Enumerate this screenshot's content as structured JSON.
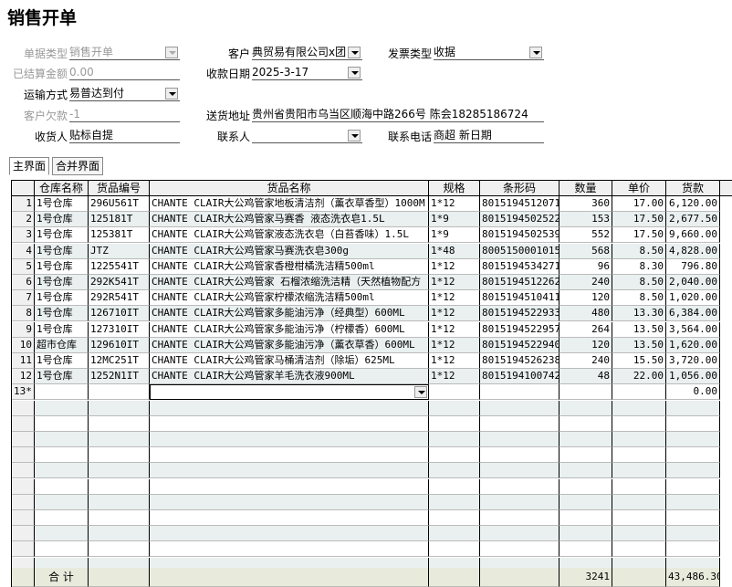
{
  "header": {
    "title": "销售开单"
  },
  "form": {
    "fields": [
      {
        "label": "单据类型",
        "value": "销售开单",
        "dropdown": true,
        "disabled": true
      },
      {
        "label": "客户",
        "value": "典贸易有限公司x团",
        "dropdown": true
      },
      {
        "label": "发票类型",
        "value": "收据",
        "dropdown": true
      },
      {
        "label": "已结算金额",
        "value": "0.00",
        "disabled": true
      },
      {
        "label": "收款日期",
        "value": "2025-3-17",
        "dropdown": true
      },
      {
        "label": "运输方式",
        "value": "易普达到付",
        "dropdown": true
      },
      {
        "label": "客户欠款",
        "value": "-1",
        "disabled": true
      },
      {
        "label": "送货地址",
        "value": "贵州省贵阳市乌当区顺海中路266号 陈会18285186724"
      },
      {
        "label": "收货人",
        "value": "贴标自提"
      },
      {
        "label": "联系人",
        "dropdown": true
      },
      {
        "label": "联系电话",
        "value": "商超 新日期"
      }
    ]
  },
  "tabs": [
    "主界面",
    "合并界面"
  ],
  "table": {
    "columns": [
      "仓库名称",
      "货品编号",
      "货品名称",
      "规格",
      "条形码",
      "数量",
      "单价",
      "货款"
    ],
    "rows": [
      {
        "no": "1",
        "cells": [
          "1号仓库",
          "296U561T",
          "CHANTE CLAIR大公鸡管家地板清洁剂（薰衣草香型）1000M",
          "1*12",
          "8015194512071",
          "360",
          "17.00",
          "6,120.00"
        ]
      },
      {
        "no": "2",
        "cells": [
          "1号仓库",
          "125181T",
          "CHANTE CLAIR大公鸡管家马赛香 液态洗衣皂1.5L",
          "1*9",
          "8015194502522",
          "153",
          "17.50",
          "2,677.50"
        ]
      },
      {
        "no": "3",
        "cells": [
          "1号仓库",
          "125381T",
          "CHANTE CLAIR大公鸡管家液态洗衣皂（白苔香味）1.5L",
          "1*9",
          "8015194502539",
          "552",
          "17.50",
          "9,660.00"
        ]
      },
      {
        "no": "4",
        "cells": [
          "1号仓库",
          "JTZ",
          "CHANTE CLAIR大公鸡管家马赛洗衣皂300g",
          "1*48",
          "8005150001015",
          "568",
          "8.50",
          "4,828.00"
        ]
      },
      {
        "no": "5",
        "cells": [
          "1号仓库",
          "1225541T",
          "CHANTE CLAIR大公鸡管家香橙柑橘洗洁精500ml",
          "1*12",
          "8015194534271",
          "96",
          "8.30",
          "796.80"
        ]
      },
      {
        "no": "6",
        "cells": [
          "1号仓库",
          "292K541T",
          "CHANTE CLAIR大公鸡管家 石榴浓缩洗洁精（天然植物配方",
          "1*12",
          "8015194512262",
          "240",
          "8.50",
          "2,040.00"
        ]
      },
      {
        "no": "7",
        "cells": [
          "1号仓库",
          "292R541T",
          "CHANTE CLAIR大公鸡管家柠檬浓缩洗洁精500ml",
          "1*12",
          "8015194510411",
          "120",
          "8.50",
          "1,020.00"
        ]
      },
      {
        "no": "8",
        "cells": [
          "1号仓库",
          "126710IT",
          "CHANTE CLAIR大公鸡管家多能油污净（经典型）600ML",
          "1*12",
          "8015194522933",
          "480",
          "13.30",
          "6,384.00"
        ]
      },
      {
        "no": "9",
        "cells": [
          "1号仓库",
          "127310IT",
          "CHANTE CLAIR大公鸡管家多能油污净（柠檬香）600ML",
          "1*12",
          "8015194522957",
          "264",
          "13.50",
          "3,564.00"
        ]
      },
      {
        "no": "10",
        "cells": [
          "超市仓库",
          "129610IT",
          "CHANTE CLAIR大公鸡管家多能油污净（薰衣草香）600ML",
          "1*12",
          "8015194522940",
          "120",
          "13.50",
          "1,620.00"
        ]
      },
      {
        "no": "11",
        "cells": [
          "1号仓库",
          "12MC251T",
          "CHANTE CLAIR大公鸡管家马桶清洁剂（除垢）625ML",
          "1*12",
          "8015194526238",
          "240",
          "15.50",
          "3,720.00"
        ]
      },
      {
        "no": "12",
        "cells": [
          "1号仓库",
          "1252N1IT",
          "CHANTE CLAIR大公鸡管家羊毛洗衣液900ML",
          "1*12",
          "8015194100742",
          "48",
          "22.00",
          "1,056.00"
        ]
      }
    ],
    "new_row": {
      "no": "13*",
      "amount": "0.00"
    },
    "footer": {
      "label": "合 计",
      "quantity": "3241",
      "amount": "43,486.30"
    }
  }
}
